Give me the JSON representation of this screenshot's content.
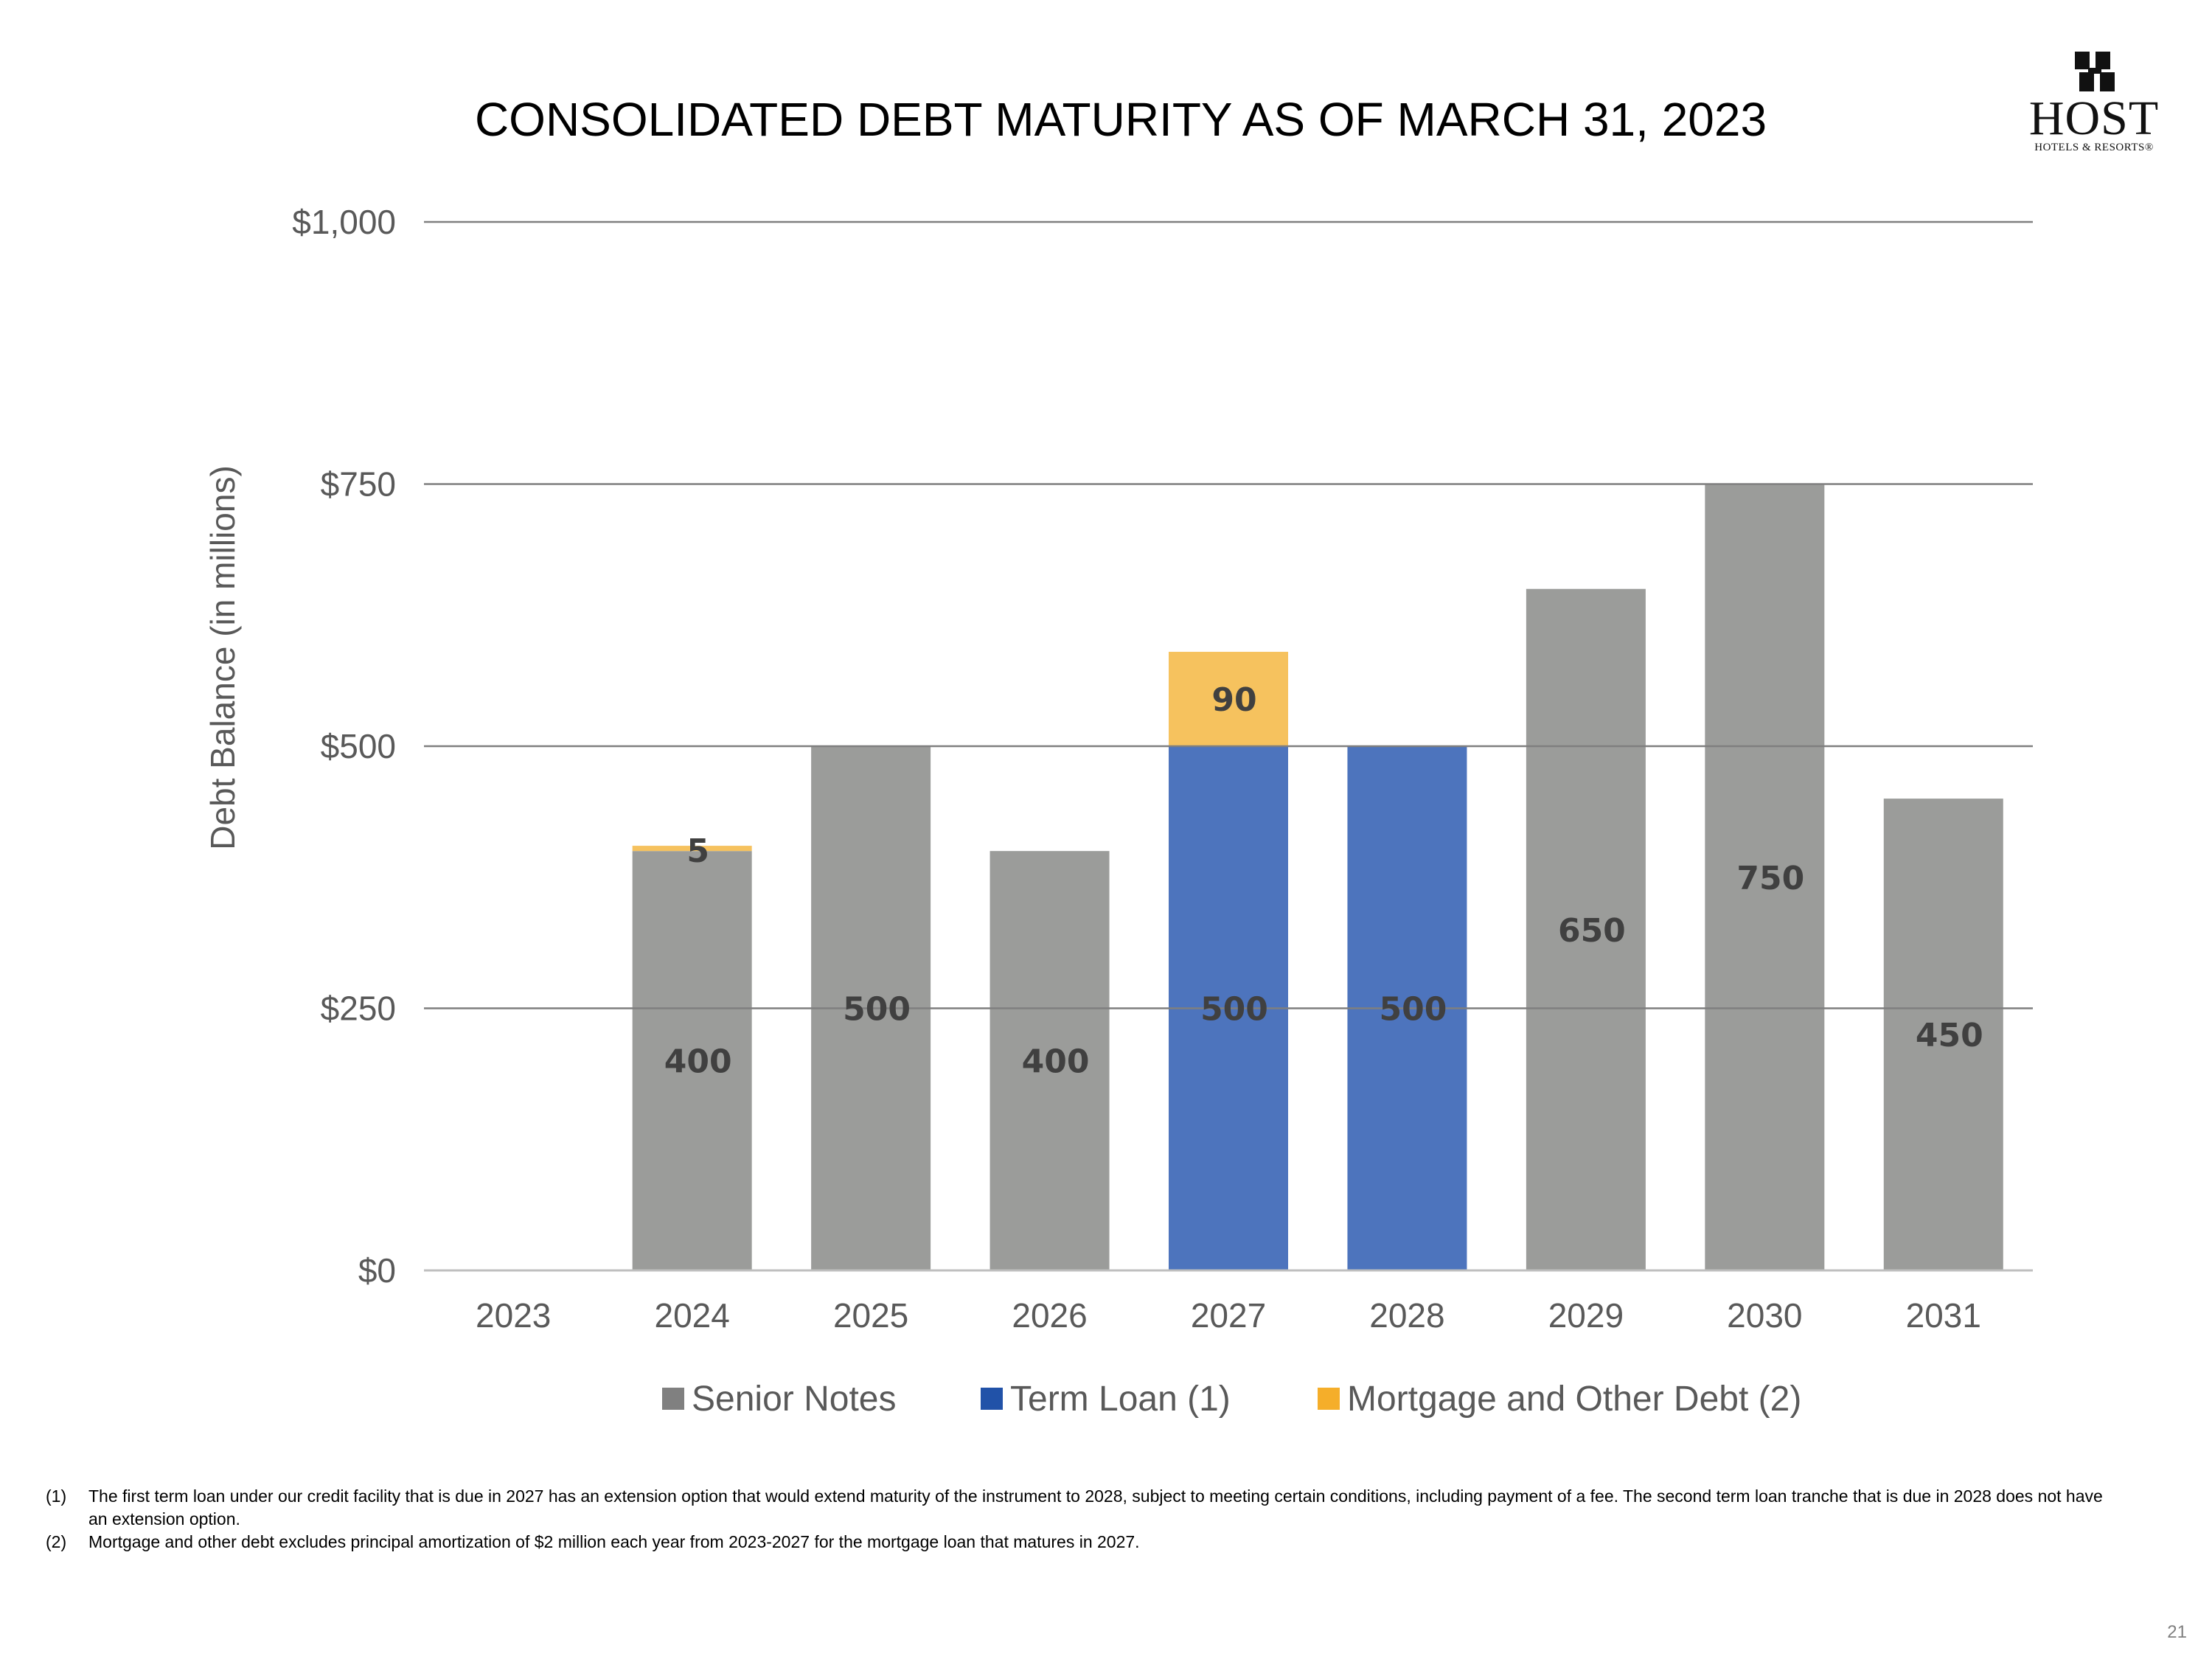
{
  "title": "CONSOLIDATED DEBT MATURITY AS OF MARCH 31, 2023",
  "logo": {
    "word": "HOST",
    "subtitle": "HOTELS & RESORTS®",
    "icon": "host-logo-mark-icon"
  },
  "chart_data": {
    "type": "bar",
    "stacked": true,
    "title": "",
    "xlabel": "",
    "ylabel": "Debt Balance (in millions)",
    "ylim": [
      0,
      1000
    ],
    "yticks": [
      0,
      250,
      500,
      750,
      1000
    ],
    "ytick_labels": [
      "$0",
      "$250",
      "$500",
      "$750",
      "$1,000"
    ],
    "categories": [
      "2023",
      "2024",
      "2025",
      "2026",
      "2027",
      "2028",
      "2029",
      "2030",
      "2031"
    ],
    "series": [
      {
        "name": "Senior Notes",
        "color": "#9B9C9A",
        "values": [
          0,
          400,
          500,
          400,
          0,
          0,
          650,
          750,
          450
        ]
      },
      {
        "name": "Term Loan (1)",
        "color": "#4D74BD",
        "values": [
          0,
          0,
          0,
          0,
          500,
          500,
          0,
          0,
          0
        ]
      },
      {
        "name": "Mortgage and Other Debt (2)",
        "color": "#F6C25E",
        "values": [
          0,
          5,
          0,
          0,
          90,
          0,
          0,
          0,
          0
        ]
      }
    ],
    "legend_colors": [
      "#808080",
      "#2152A8",
      "#F5AE2A"
    ],
    "grid": true,
    "legend_position": "bottom"
  },
  "footnotes": [
    {
      "num": "(1)",
      "text": "The first term loan under our credit facility that is due in 2027 has an extension option that would extend maturity of the instrument to 2028, subject to meeting certain conditions, including payment of a fee. The second term loan tranche that is due in 2028 does not have an extension option."
    },
    {
      "num": "(2)",
      "text": "Mortgage and other debt excludes principal amortization of $2 million each year from 2023-2027 for the mortgage loan that matures in 2027."
    }
  ],
  "page_number": "21"
}
